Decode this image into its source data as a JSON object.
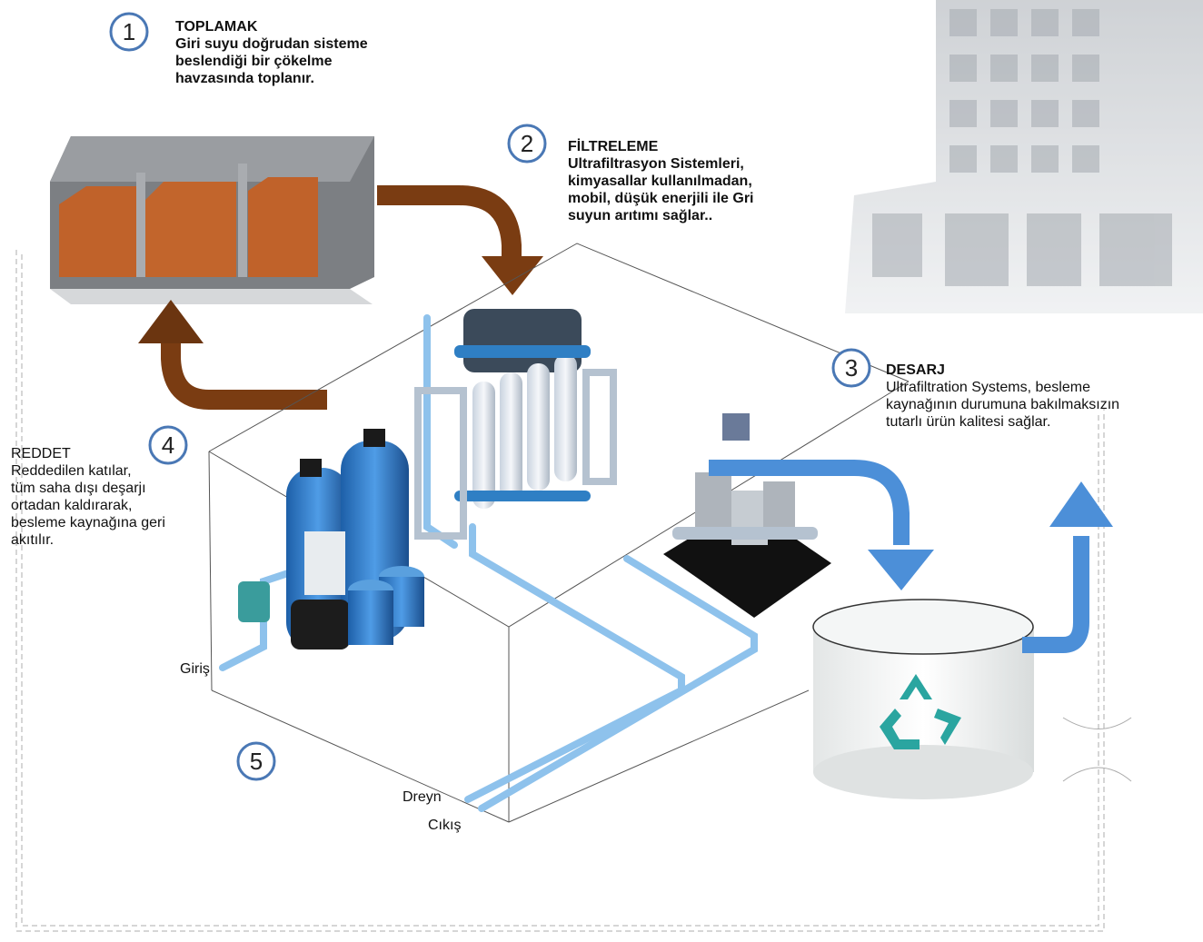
{
  "steps": [
    {
      "number": "1",
      "title": "TOPLAMAK",
      "lines": [
        "Giri suyu doğrudan sisteme",
        "beslendiği bir çökelme",
        "havzasında toplanır."
      ]
    },
    {
      "number": "2",
      "title": "FİLTRELEME",
      "lines": [
        "Ultrafiltrasyon Sistemleri,",
        "kimyasallar kullanılmadan,",
        "mobil, düşük enerjili ile Gri",
        "suyun arıtımı sağlar.."
      ]
    },
    {
      "number": "3",
      "title": "DESARJ",
      "lines": [
        "Ultrafiltration Systems, besleme",
        "kaynağının durumuna bakılmaksızın",
        "tutarlı ürün kalitesi sağlar."
      ]
    },
    {
      "number": "4",
      "title": "REDDET",
      "lines": [
        "Reddedilen katılar,",
        "tüm saha dışı deşarjı",
        "ortadan kaldırarak,",
        "besleme kaynağına geri",
        "akıtılır."
      ]
    },
    {
      "number": "5"
    }
  ],
  "labels": {
    "inlet": "Giriş",
    "drain": "Dreyn",
    "outlet": "Cıkış"
  }
}
